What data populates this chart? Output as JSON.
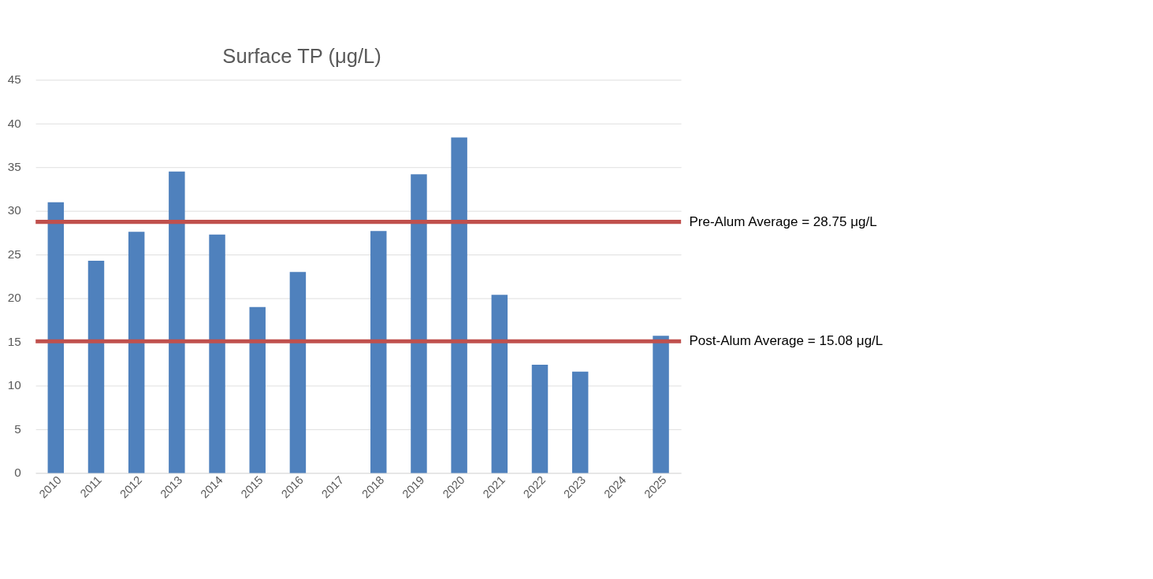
{
  "chart_data": {
    "type": "bar",
    "title": "Surface TP (μg/L)",
    "categories": [
      "2010",
      "2011",
      "2012",
      "2013",
      "2014",
      "2015",
      "2016",
      "2017",
      "2018",
      "2019",
      "2020",
      "2021",
      "2022",
      "2023",
      "2024",
      "2025"
    ],
    "values": [
      31.0,
      24.3,
      27.6,
      34.5,
      27.3,
      19.0,
      23.0,
      null,
      27.7,
      34.2,
      38.4,
      20.4,
      12.4,
      11.6,
      null,
      15.7
    ],
    "color": "#4f81bd",
    "ylim": [
      0,
      45
    ],
    "yticks": [
      0,
      5,
      10,
      15,
      20,
      25,
      30,
      35,
      40,
      45
    ],
    "grid": "y",
    "ref_lines": [
      {
        "axis": "y",
        "value": 28.75,
        "label": "Pre-Alum Average = 28.75 μg/L",
        "color": "#c0504d"
      },
      {
        "axis": "y",
        "value": 15.08,
        "label": "Post-Alum Average = 15.08 μg/L",
        "color": "#c0504d"
      }
    ]
  }
}
